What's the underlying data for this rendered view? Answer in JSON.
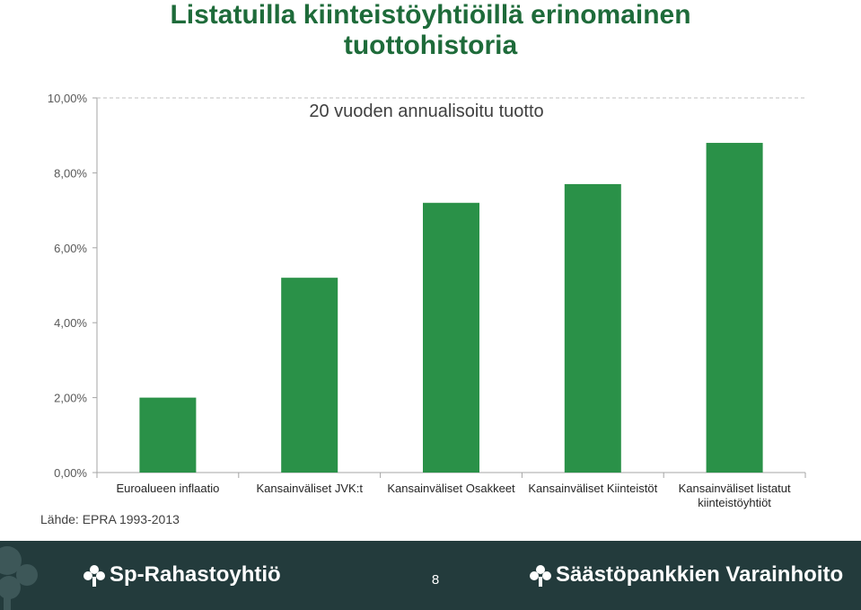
{
  "slide": {
    "title_line1": "Listatuilla kiinteistöyhtiöillä erinomainen",
    "title_line2": "tuottohistoria",
    "source": "Lähde: EPRA 1993-2013"
  },
  "footer": {
    "brand_left": "Sp-Rahastoyhtiö",
    "brand_right": "Säästöpankkien Varainhoito",
    "page_number": "8",
    "background": "#233b3c"
  },
  "chart_data": {
    "type": "bar",
    "title": "20 vuoden annualisoitu tuotto",
    "categories": [
      [
        "Euroalueen inflaatio"
      ],
      [
        "Kansainväliset JVK:t"
      ],
      [
        "Kansainväliset Osakkeet"
      ],
      [
        "Kansainväliset Kiinteistöt"
      ],
      [
        "Kansainväliset listatut",
        "kiinteistöyhtiöt"
      ]
    ],
    "values": [
      2.0,
      5.2,
      7.2,
      7.7,
      8.8
    ],
    "ylim": [
      0,
      10
    ],
    "yticks": [
      "0,00%",
      "2,00%",
      "4,00%",
      "6,00%",
      "8,00%",
      "10,00%"
    ],
    "xlabel": "",
    "ylabel": "",
    "grid": "none",
    "legend": "none",
    "bar_color": "#2a9148"
  }
}
